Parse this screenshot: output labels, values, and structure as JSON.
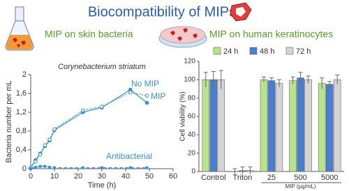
{
  "title": "Biocompatibility of MIPs",
  "chart_data": [
    {
      "type": "line",
      "heading": "MIP on skin bacteria",
      "title": "Corynebacterium striatum",
      "x_label": "Time (h)",
      "y_label": "Bacteria number per mL",
      "xlim": [
        0,
        60
      ],
      "xticks": [
        0,
        10,
        20,
        30,
        40,
        50,
        60
      ],
      "ylim": [
        0,
        2
      ],
      "yticks": [
        0,
        {
          "value": 0.4,
          "label": "0,4"
        },
        {
          "value": 0.8,
          "label": "0,8"
        },
        {
          "value": 1.2,
          "label": "1,2"
        },
        {
          "value": 1.6,
          "label": "1,6"
        },
        2
      ],
      "x": [
        0,
        2,
        4,
        6,
        8,
        10,
        22,
        30,
        42,
        49
      ],
      "series": [
        {
          "name": "No MIP",
          "color": "#3a8fd0",
          "style": "solid",
          "marker": "filled",
          "values": [
            0.02,
            0.18,
            0.32,
            0.48,
            0.6,
            0.82,
            1.2,
            1.3,
            1.68,
            1.4
          ]
        },
        {
          "name": "MIP",
          "color": "#3a8fd0",
          "style": "dotted",
          "marker": "open",
          "values": [
            0.02,
            0.15,
            0.3,
            0.5,
            0.62,
            0.84,
            1.24,
            1.32,
            1.62,
            1.55
          ]
        },
        {
          "name": "Antibacterial",
          "color": "#3a8fd0",
          "style": "dashed",
          "marker": "square",
          "values": [
            0.0,
            0.03,
            0.05,
            0.05,
            0.03,
            0.02,
            0.02,
            0.02,
            0.02,
            0.02
          ]
        }
      ]
    },
    {
      "type": "bar",
      "heading": "MIP on human keratinocytes",
      "y_label": "Cell viability (%)",
      "x_label": "MIP (µg/mL)",
      "categories": [
        "Control",
        "Triton",
        "25",
        "500",
        "5000"
      ],
      "ylim": [
        0,
        120
      ],
      "yticks": [
        0,
        20,
        40,
        60,
        80,
        100,
        120
      ],
      "legend": "top",
      "series": [
        {
          "name": "24 h",
          "color": "#b8e28c",
          "values": [
            100,
            0,
            100,
            99,
            96
          ],
          "errors": [
            8,
            3,
            3,
            4,
            6
          ]
        },
        {
          "name": "48 h",
          "color": "#4a7fd0",
          "values": [
            100,
            1,
            99,
            102,
            95
          ],
          "errors": [
            9,
            4,
            3,
            6,
            3
          ]
        },
        {
          "name": "72 h",
          "color": "#d4d4d4",
          "values": [
            100,
            1,
            96,
            100,
            100
          ],
          "errors": [
            10,
            4,
            4,
            4,
            5
          ]
        }
      ]
    }
  ]
}
